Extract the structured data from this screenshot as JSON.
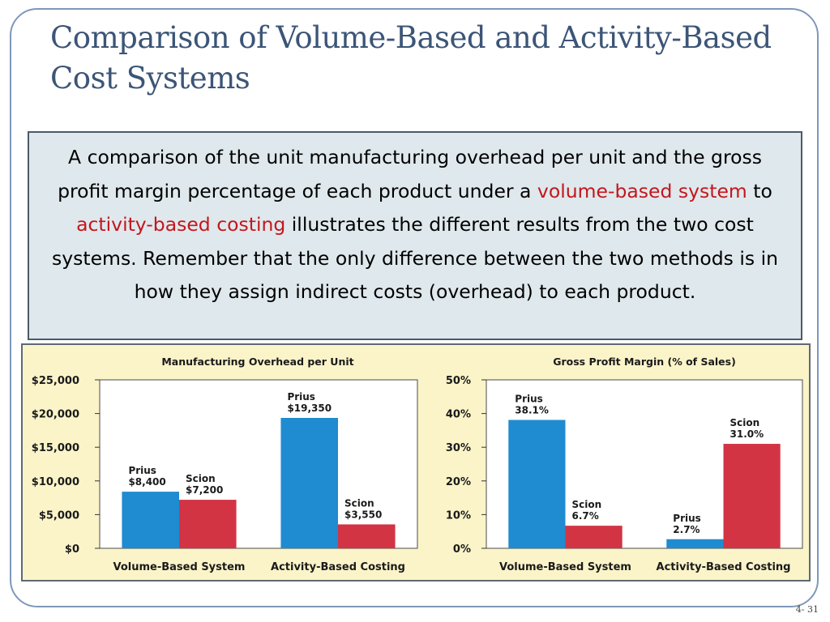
{
  "slide": {
    "title": "Comparison of Volume-Based and Activity-Based Cost Systems",
    "page_number": "4- 31"
  },
  "callout": {
    "part1": "A comparison of the unit manufacturing overhead per unit and the gross profit margin percentage of each product under a ",
    "highlight1": "volume-based system",
    "part2": " to ",
    "highlight2": "activity-based costing",
    "part3": " illustrates the different results from the two cost systems. Remember that the only difference between the two methods is in how they assign indirect costs (overhead) to each product.",
    "highlight_color": "#c4161c"
  },
  "colors": {
    "prius": "#1f8bd1",
    "scion": "#d23444",
    "panel_bg": "#fbf4c9",
    "plot_bg": "#ffffff"
  },
  "chart_data": [
    {
      "type": "bar",
      "title": "Manufacturing Overhead per Unit",
      "categories": [
        "Volume-Based System",
        "Activity-Based Costing"
      ],
      "ylim": [
        0,
        25000
      ],
      "yticks": [
        0,
        5000,
        10000,
        15000,
        20000,
        25000
      ],
      "ytick_labels": [
        "$0",
        "$5,000",
        "$10,000",
        "$15,000",
        "$20,000",
        "$25,000"
      ],
      "grid": false,
      "legend": "none",
      "series": [
        {
          "product": "Prius",
          "values": [
            8400,
            19350
          ],
          "value_labels": [
            "$8,400",
            "$19,350"
          ]
        },
        {
          "product": "Scion",
          "values": [
            7200,
            3550
          ],
          "value_labels": [
            "$7,200",
            "$3,550"
          ]
        }
      ]
    },
    {
      "type": "bar",
      "title": "Gross Profit Margin (% of Sales)",
      "categories": [
        "Volume-Based System",
        "Activity-Based Costing"
      ],
      "ylim": [
        0,
        50
      ],
      "yticks": [
        0,
        10,
        20,
        30,
        40,
        50
      ],
      "ytick_labels": [
        "0%",
        "10%",
        "20%",
        "30%",
        "40%",
        "50%"
      ],
      "grid": false,
      "legend": "none",
      "series": [
        {
          "product": "Prius",
          "values": [
            38.1,
            2.7
          ],
          "value_labels": [
            "38.1%",
            "2.7%"
          ]
        },
        {
          "product": "Scion",
          "values": [
            6.7,
            31.0
          ],
          "value_labels": [
            "6.7%",
            "31.0%"
          ]
        }
      ]
    }
  ]
}
